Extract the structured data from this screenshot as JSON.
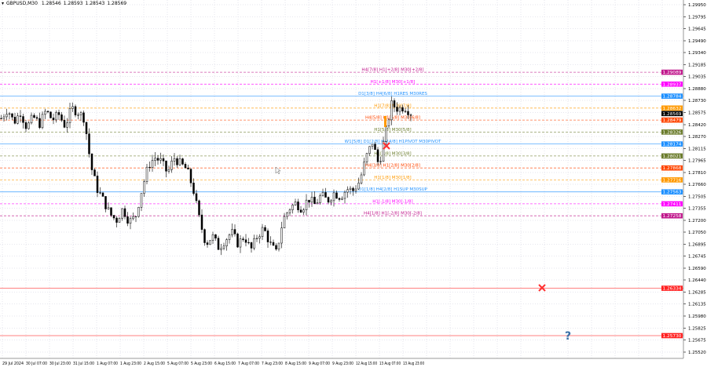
{
  "header": {
    "symbol": "GBPUSD,M30",
    "open": "1.28546",
    "high": "1.28593",
    "low": "1.28543",
    "close": "1.28569"
  },
  "chart_data": {
    "type": "candlestick",
    "price_axis": {
      "min": 1.2545,
      "max": 1.3001,
      "ticks": [
        "1.29950",
        "1.29795",
        "1.29645",
        "1.29490",
        "1.29340",
        "1.29185",
        "1.29035",
        "1.28880",
        "1.28730",
        "1.28575",
        "1.28420",
        "1.28270",
        "1.28115",
        "1.27965",
        "1.27810",
        "1.27660",
        "1.27505",
        "1.27355",
        "1.27200",
        "1.27050",
        "1.26895",
        "1.26745",
        "1.26590",
        "1.26440",
        "1.26285",
        "1.26135",
        "1.25980",
        "1.25825",
        "1.25675",
        "1.25520"
      ]
    },
    "time_ticks": [
      "29 Jul 2024",
      "30 Jul 07:00",
      "30 Jul 23:00",
      "31 Jul 15:00",
      "1 Aug 07:00",
      "1 Aug 23:00",
      "2 Aug 15:00",
      "5 Aug 07:00",
      "5 Aug 23:00",
      "6 Aug 15:00",
      "7 Aug 07:00",
      "7 Aug 23:00",
      "8 Aug 15:00",
      "9 Aug 07:00",
      "9 Aug 23:00",
      "12 Aug 15:00",
      "13 Aug 07:00",
      "13 Aug 23:00"
    ],
    "approx_closes": [
      1.285,
      1.2862,
      1.2845,
      1.2858,
      1.2838,
      1.2852,
      1.2843,
      1.286,
      1.2848,
      1.2855,
      1.284,
      1.2863,
      1.2858,
      1.285,
      1.279,
      1.276,
      1.2745,
      1.2728,
      1.272,
      1.2735,
      1.2718,
      1.2725,
      1.276,
      1.279,
      1.28,
      1.2795,
      1.278,
      1.28,
      1.2792,
      1.2785,
      1.276,
      1.272,
      1.269,
      1.27,
      1.2685,
      1.2695,
      1.2705,
      1.269,
      1.27,
      1.2682,
      1.27,
      1.271,
      1.269,
      1.2678,
      1.272,
      1.2735,
      1.2742,
      1.2735,
      1.2748,
      1.274,
      1.2752,
      1.2745,
      1.2755,
      1.275,
      1.276,
      1.2758,
      1.277,
      1.28,
      1.282,
      1.279,
      1.283,
      1.2868,
      1.2862,
      1.2865,
      1.2857
    ],
    "current_price": {
      "value": 1.28569,
      "label": "1.28569",
      "color": "#000000"
    },
    "levels": [
      {
        "price": 1.29089,
        "label": "1.29089",
        "text": "H4[7/8] H1[+2/8] M30[+2/8]",
        "color": "#c0188c"
      },
      {
        "price": 1.28937,
        "label": "1.28937",
        "text": "H1[+1/8] M30[+1/8]",
        "color": "#ff00ff"
      },
      {
        "price": 1.28784,
        "label": "1.28784",
        "text": "D1[3/8] H4[6/8] H1RES M30RES",
        "color": "#1e90ff"
      },
      {
        "price": 1.28632,
        "label": "1.28632",
        "text": "H1[7/8] M30[7/8]",
        "color": "#ff9900"
      },
      {
        "price": 1.28479,
        "label": "1.28479",
        "text": "H4[5/8] H1[6/8] M30[6/8]",
        "color": "#ff4500"
      },
      {
        "price": 1.28326,
        "label": "1.28326",
        "text": "H1[5/8] M30[5/8]",
        "color": "#6b7c2c"
      },
      {
        "price": 1.28174,
        "label": "1.28174",
        "text": "W1[5/8] D1[2/8] H4[4/8] H1PIVOT M30PIVOT",
        "color": "#1e90ff"
      },
      {
        "price": 1.28021,
        "label": "1.28021",
        "text": "H1[3/8] M30[3/8]",
        "color": "#6b7c2c"
      },
      {
        "price": 1.27868,
        "label": "1.27868",
        "text": "H4[3/8] H1[2/8] M30[2/8]",
        "color": "#ff4500"
      },
      {
        "price": 1.27716,
        "label": "1.27716",
        "text": "H1[1/8] M30[1/8]",
        "color": "#ff9900"
      },
      {
        "price": 1.27563,
        "label": "1.27563",
        "text": "D1[1/8] H4[2/8] H1SUP M30SUP",
        "color": "#1e90ff"
      },
      {
        "price": 1.27411,
        "label": "1.27411",
        "text": "H1[-1/8] M30[-1/8]",
        "color": "#ff00ff"
      },
      {
        "price": 1.27258,
        "label": "1.27258",
        "text": "H4[1/8] H1[-2/8] M30[-2/8]",
        "color": "#c0188c"
      },
      {
        "price": 1.26334,
        "label": "1.26334",
        "text": "",
        "color": "#ff2020"
      },
      {
        "price": 1.2573,
        "label": "1.25730",
        "text": "",
        "color": "#ff2020"
      }
    ],
    "markers": [
      {
        "type": "cross-icon",
        "price": 1.2815,
        "time_index": 16.4,
        "color": "#ff3030"
      },
      {
        "type": "cross-icon",
        "price": 1.2634,
        "time_index": 23,
        "color": "#ff3030"
      },
      {
        "type": "question-icon",
        "price": 1.2573,
        "time_index": 24.1,
        "color": "#3a6ea5"
      }
    ]
  }
}
